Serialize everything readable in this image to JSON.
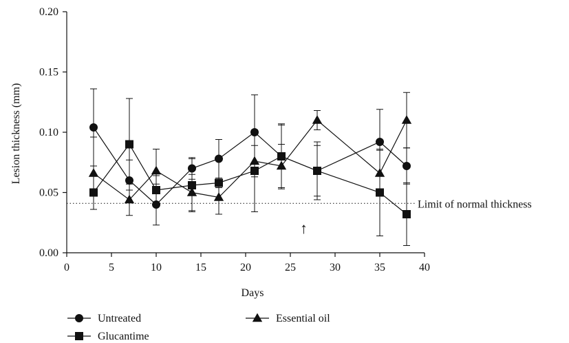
{
  "chart_data": {
    "type": "line",
    "xlabel": "Days",
    "ylabel": "Lesion thickness (mm)",
    "xlim": [
      0,
      40
    ],
    "ylim": [
      0,
      0.2
    ],
    "x_ticks": [
      "0",
      "5",
      "10",
      "15",
      "20",
      "25",
      "30",
      "35",
      "40"
    ],
    "y_ticks": [
      "0.00",
      "0.05",
      "0.10",
      "0.15",
      "0.20"
    ],
    "grid": false,
    "legend_position": "bottom-left",
    "series": [
      {
        "name": "Untreated",
        "marker": "circle",
        "x": [
          3,
          7,
          10,
          14,
          17,
          21,
          24,
          28,
          35,
          38
        ],
        "y": [
          0.104,
          0.06,
          0.04,
          0.07,
          0.078,
          0.1,
          0.08,
          0.068,
          0.092,
          0.072
        ],
        "err": [
          0.032,
          0.017,
          0.017,
          0.009,
          0.016,
          0.031,
          0.027,
          0.021,
          0.027,
          0.015
        ]
      },
      {
        "name": "Glucantime",
        "marker": "square",
        "x": [
          3,
          7,
          10,
          14,
          17,
          21,
          24,
          28,
          35,
          38
        ],
        "y": [
          0.05,
          0.09,
          0.052,
          0.056,
          0.058,
          0.068,
          0.08,
          0.068,
          0.05,
          0.032
        ],
        "err": [
          0.014,
          0.038,
          0.012,
          0.022,
          0.004,
          0.034,
          0.026,
          0.024,
          0.036,
          0.026
        ]
      },
      {
        "name": "Essential oil",
        "marker": "triangle",
        "x": [
          3,
          7,
          10,
          14,
          17,
          21,
          24,
          28,
          35,
          38
        ],
        "y": [
          0.066,
          0.044,
          0.068,
          0.05,
          0.046,
          0.076,
          0.072,
          0.11,
          0.066,
          0.11
        ],
        "err": [
          0.03,
          0.013,
          0.018,
          0.015,
          0.014,
          0.013,
          0.018,
          0.008,
          0.019,
          0.023
        ]
      }
    ],
    "reference_line": {
      "y": 0.041,
      "label": "Limit of normal thickness",
      "style": "dotted"
    },
    "annotations": [
      {
        "symbol": "↑",
        "x": 26.5,
        "y": 0.016
      }
    ]
  }
}
